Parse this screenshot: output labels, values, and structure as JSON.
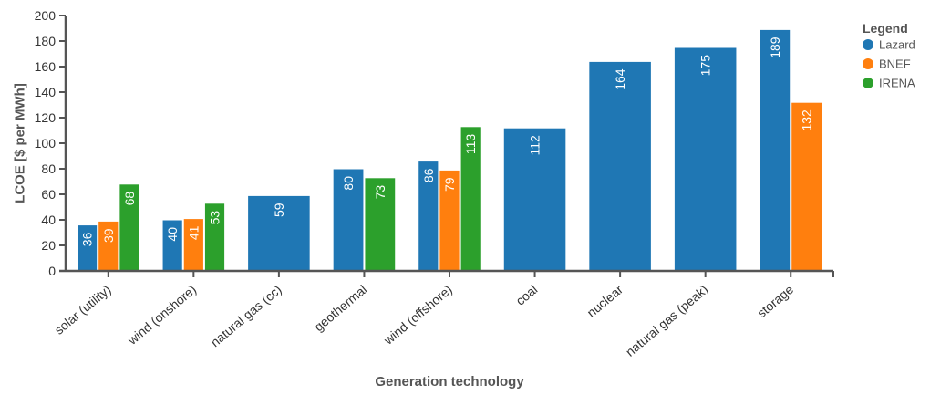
{
  "chart_data": {
    "type": "bar",
    "xlabel": "Generation technology",
    "ylabel": "LCOE [$ per MWh]",
    "ylim": [
      0,
      200
    ],
    "yticks": [
      0,
      20,
      40,
      60,
      80,
      100,
      120,
      140,
      160,
      180,
      200
    ],
    "grid": false,
    "legend": {
      "title": "Legend",
      "placement": "top-right"
    },
    "categories": [
      "solar (utility)",
      "wind (onshore)",
      "natural gas (cc)",
      "geothermal",
      "wind (offshore)",
      "coal",
      "nuclear",
      "natural gas (peak)",
      "storage"
    ],
    "series": [
      {
        "name": "Lazard",
        "color": "#1f77b4",
        "values": [
          36,
          40,
          59,
          80,
          86,
          112,
          164,
          175,
          189
        ]
      },
      {
        "name": "BNEF",
        "color": "#ff7f0e",
        "values": [
          39,
          41,
          null,
          null,
          79,
          null,
          null,
          null,
          132
        ]
      },
      {
        "name": "IRENA",
        "color": "#2ca02c",
        "values": [
          68,
          53,
          null,
          73,
          113,
          null,
          null,
          null,
          null
        ]
      }
    ]
  }
}
